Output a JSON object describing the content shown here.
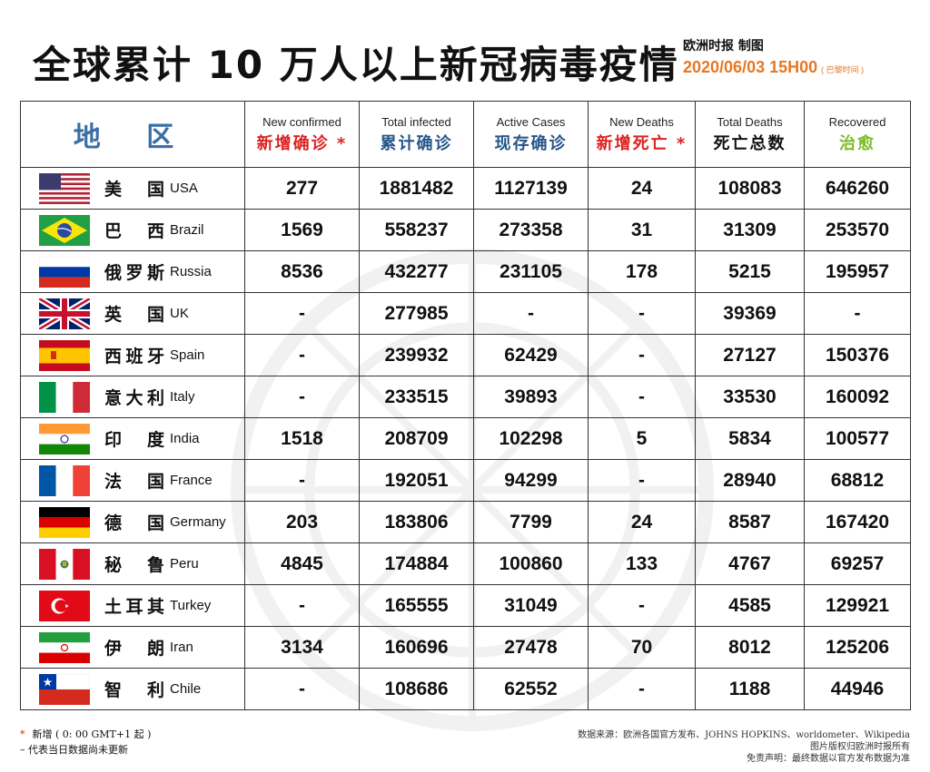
{
  "header": {
    "title": "全球累计 10 万人以上新冠病毒疫情",
    "publisher": "欧洲时报 制图",
    "datetime": "2020/06/03  15H00",
    "timezone_note": "( 巴黎时间 )"
  },
  "table": {
    "region_header": "地 区",
    "columns": [
      {
        "en": "New confirmed",
        "zh": "新增确诊 *",
        "zh_color": "#dd2222"
      },
      {
        "en": "Total infected",
        "zh": "累计确诊",
        "zh_color": "#27558a"
      },
      {
        "en": "Active Cases",
        "zh": "现存确诊",
        "zh_color": "#27558a"
      },
      {
        "en": "New Deaths",
        "zh": "新增死亡 *",
        "zh_color": "#dd2222"
      },
      {
        "en": "Total Deaths",
        "zh": "死亡总数",
        "zh_color": "#111111"
      },
      {
        "en": "Recovered",
        "zh": "治愈",
        "zh_color": "#7cbd2a"
      }
    ],
    "rows": [
      {
        "flag": "usa-flag-icon",
        "zh": "美 国",
        "en": "USA",
        "values": [
          "277",
          "1881482",
          "1127139",
          "24",
          "108083",
          "646260"
        ]
      },
      {
        "flag": "brazil-flag-icon",
        "zh": "巴 西",
        "en": "Brazil",
        "values": [
          "1569",
          "558237",
          "273358",
          "31",
          "31309",
          "253570"
        ]
      },
      {
        "flag": "russia-flag-icon",
        "zh": "俄罗斯",
        "en": "Russia",
        "values": [
          "8536",
          "432277",
          "231105",
          "178",
          "5215",
          "195957"
        ]
      },
      {
        "flag": "uk-flag-icon",
        "zh": "英 国",
        "en": "UK",
        "values": [
          "-",
          "277985",
          "-",
          "-",
          "39369",
          "-"
        ]
      },
      {
        "flag": "spain-flag-icon",
        "zh": "西班牙",
        "en": "Spain",
        "values": [
          "-",
          "239932",
          "62429",
          "-",
          "27127",
          "150376"
        ]
      },
      {
        "flag": "italy-flag-icon",
        "zh": "意大利",
        "en": "Italy",
        "values": [
          "-",
          "233515",
          "39893",
          "-",
          "33530",
          "160092"
        ]
      },
      {
        "flag": "india-flag-icon",
        "zh": "印 度",
        "en": "India",
        "values": [
          "1518",
          "208709",
          "102298",
          "5",
          "5834",
          "100577"
        ]
      },
      {
        "flag": "france-flag-icon",
        "zh": "法 国",
        "en": "France",
        "values": [
          "-",
          "192051",
          "94299",
          "-",
          "28940",
          "68812"
        ]
      },
      {
        "flag": "germany-flag-icon",
        "zh": "德 国",
        "en": "Germany",
        "values": [
          "203",
          "183806",
          "7799",
          "24",
          "8587",
          "167420"
        ]
      },
      {
        "flag": "peru-flag-icon",
        "zh": "秘 鲁",
        "en": "Peru",
        "values": [
          "4845",
          "174884",
          "100860",
          "133",
          "4767",
          "69257"
        ]
      },
      {
        "flag": "turkey-flag-icon",
        "zh": "土耳其",
        "en": "Turkey",
        "values": [
          "-",
          "165555",
          "31049",
          "-",
          "4585",
          "129921"
        ]
      },
      {
        "flag": "iran-flag-icon",
        "zh": "伊 朗",
        "en": "Iran",
        "values": [
          "3134",
          "160696",
          "27478",
          "70",
          "8012",
          "125206"
        ]
      },
      {
        "flag": "chile-flag-icon",
        "zh": "智 利",
        "en": "Chile",
        "values": [
          "-",
          "108686",
          "62552",
          "-",
          "1188",
          "44946"
        ]
      }
    ]
  },
  "footer": {
    "legend_star": "*",
    "legend_new": "新增 ( 0: 00 GMT+1 起 )",
    "legend_dash": "– 代表当日数据尚未更新",
    "source": "数据来源：欧洲各国官方发布、JOHNS HOPKINS、worldometer、Wikipedia",
    "copyright": "图片版权归欧洲时报所有",
    "disclaimer": "免责声明：最终数据以官方发布数据为准"
  },
  "colors": {
    "accent_orange": "#e87722",
    "region_blue": "#3a6fa5",
    "red": "#dd2222",
    "green": "#7cbd2a"
  }
}
